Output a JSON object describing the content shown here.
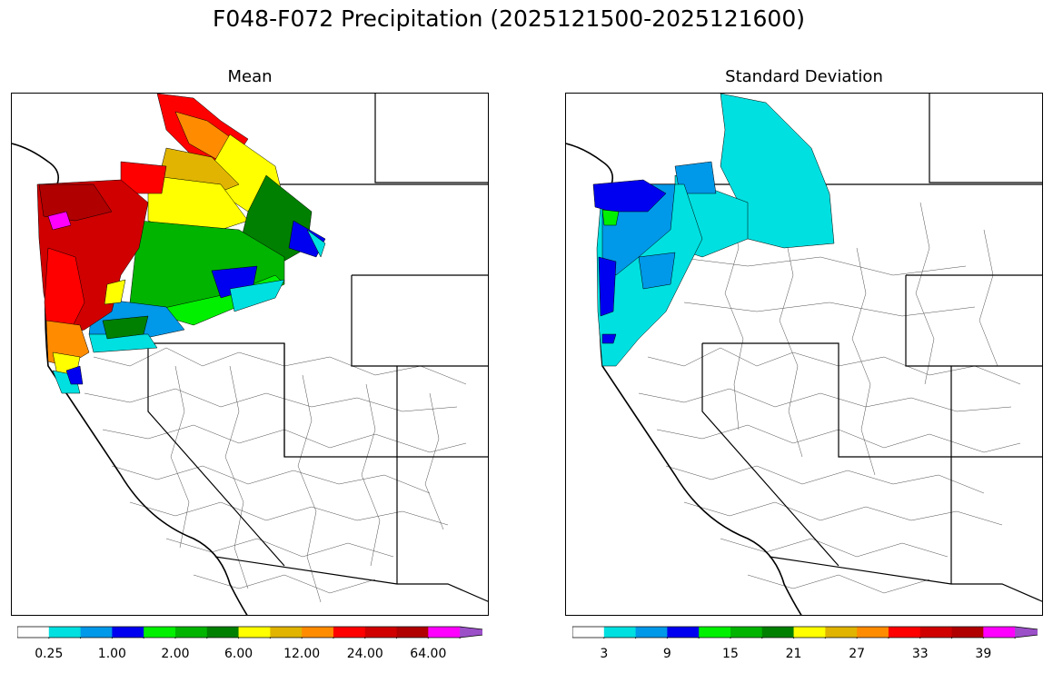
{
  "figure": {
    "title": "F048-F072 Precipitation (2025121500-2025121600)"
  },
  "panels": [
    {
      "id": "mean",
      "title": "Mean",
      "colorbar": {
        "colors": [
          "#ffffff",
          "#00e0e0",
          "#0098e8",
          "#0000f0",
          "#00f000",
          "#00b400",
          "#008000",
          "#ffff00",
          "#e0b400",
          "#ff8c00",
          "#ff0000",
          "#d00000",
          "#b00000",
          "#ff00ff",
          "#9b50c8"
        ],
        "tick_labels": [
          "0.25",
          "1.00",
          "2.00",
          "6.00",
          "12.00",
          "24.00",
          "64.00"
        ],
        "extend": "max"
      }
    },
    {
      "id": "stddev",
      "title": "Standard Deviation",
      "colorbar": {
        "colors": [
          "#ffffff",
          "#00e0e0",
          "#0098e8",
          "#0000f0",
          "#00f000",
          "#00b400",
          "#008000",
          "#ffff00",
          "#e0b400",
          "#ff8c00",
          "#ff0000",
          "#d00000",
          "#b00000",
          "#ff00ff",
          "#9b50c8"
        ],
        "tick_labels": [
          "3",
          "9",
          "15",
          "21",
          "27",
          "33",
          "39"
        ],
        "extend": "max"
      }
    }
  ]
}
